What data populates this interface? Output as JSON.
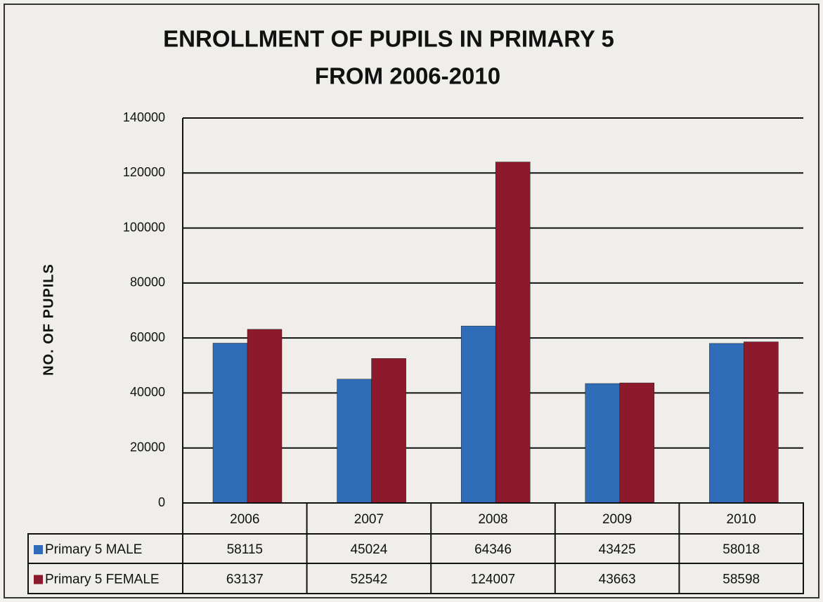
{
  "chart_data": {
    "type": "bar",
    "title": [
      "ENROLLMENT OF PUPILS  IN PRIMARY 5",
      "FROM 2006-2010"
    ],
    "y_label": "NO. OF PUPILS",
    "categories": [
      "2006",
      "2007",
      "2008",
      "2009",
      "2010"
    ],
    "series": [
      {
        "name": "Primary 5 MALE",
        "color": "#2f6db8",
        "values": [
          58115,
          45024,
          64346,
          43425,
          58018
        ]
      },
      {
        "name": "Primary 5 FEMALE",
        "color": "#8c1a2c",
        "values": [
          63137,
          52542,
          124007,
          43663,
          58598
        ]
      }
    ],
    "ylim": [
      0,
      140000
    ],
    "yticks": [
      0,
      20000,
      40000,
      60000,
      80000,
      100000,
      120000,
      140000
    ],
    "grid": true,
    "data_table": true
  }
}
